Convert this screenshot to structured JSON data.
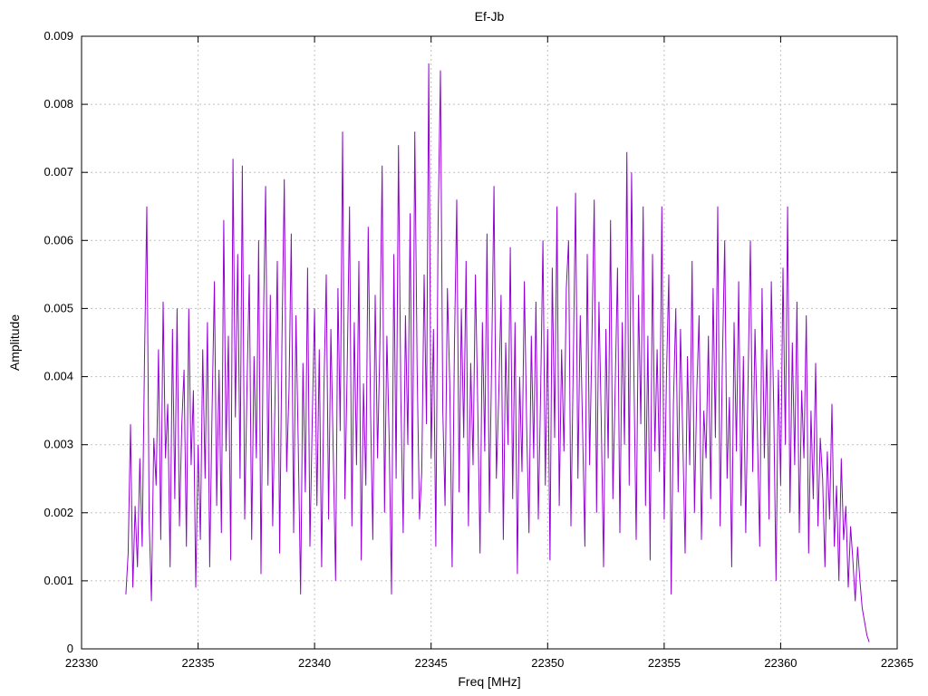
{
  "chart_data": {
    "type": "line",
    "title": "Ef-Jb",
    "xlabel": "Freq [MHz]",
    "ylabel": "Amplitude",
    "xlim": [
      22330,
      22365
    ],
    "ylim": [
      0,
      0.009
    ],
    "grid": true,
    "legend": "none",
    "line_color": "#9400d3",
    "grid_color": "#c0c0c0",
    "background_color": "#ffffff",
    "x_ticks": [
      22330,
      22335,
      22340,
      22345,
      22350,
      22355,
      22360,
      22365
    ],
    "x_tick_labels": [
      "22330",
      "22335",
      "22340",
      "22345",
      "22350",
      "22355",
      "22360",
      "22365"
    ],
    "y_ticks": [
      0,
      0.001,
      0.002,
      0.003,
      0.004,
      0.005,
      0.006,
      0.007,
      0.008,
      0.009
    ],
    "y_tick_labels": [
      "0",
      "0.001",
      "0.002",
      "0.003",
      "0.004",
      "0.005",
      "0.006",
      "0.007",
      "0.008",
      "0.009"
    ],
    "series": [
      {
        "name": "Ef-Jb",
        "x_start": 22331.9,
        "x_step": 0.1,
        "values": [
          0.0008,
          0.0014,
          0.0033,
          0.0009,
          0.0021,
          0.0012,
          0.0028,
          0.0015,
          0.0042,
          0.0065,
          0.0019,
          0.0007,
          0.0031,
          0.0024,
          0.0044,
          0.0016,
          0.0051,
          0.0028,
          0.0036,
          0.0012,
          0.0047,
          0.0022,
          0.005,
          0.0018,
          0.0033,
          0.0041,
          0.0015,
          0.005,
          0.0027,
          0.0038,
          0.0009,
          0.003,
          0.0016,
          0.0044,
          0.0025,
          0.0048,
          0.0012,
          0.0035,
          0.0054,
          0.0021,
          0.0041,
          0.0017,
          0.0063,
          0.0029,
          0.0046,
          0.0013,
          0.0072,
          0.0034,
          0.0058,
          0.0025,
          0.0071,
          0.0019,
          0.0039,
          0.0055,
          0.0016,
          0.0043,
          0.0028,
          0.006,
          0.0011,
          0.0047,
          0.0068,
          0.0024,
          0.0052,
          0.0018,
          0.0036,
          0.0057,
          0.0014,
          0.0045,
          0.0069,
          0.0026,
          0.0038,
          0.0061,
          0.0017,
          0.0049,
          0.003,
          0.0008,
          0.0042,
          0.0023,
          0.0056,
          0.0015,
          0.0034,
          0.005,
          0.0021,
          0.0044,
          0.0012,
          0.0038,
          0.0055,
          0.0019,
          0.0047,
          0.0029,
          0.001,
          0.0053,
          0.0032,
          0.0076,
          0.0022,
          0.0041,
          0.0065,
          0.0018,
          0.0048,
          0.0027,
          0.0057,
          0.0013,
          0.0039,
          0.0024,
          0.0062,
          0.0035,
          0.0016,
          0.0052,
          0.0028,
          0.0044,
          0.0071,
          0.002,
          0.0046,
          0.0031,
          0.0008,
          0.0058,
          0.0025,
          0.0074,
          0.0037,
          0.0017,
          0.0049,
          0.003,
          0.0064,
          0.0022,
          0.0076,
          0.0041,
          0.0019,
          0.0026,
          0.0055,
          0.0033,
          0.0086,
          0.0028,
          0.0047,
          0.0015,
          0.0062,
          0.0085,
          0.0035,
          0.0021,
          0.0053,
          0.0039,
          0.0012,
          0.0044,
          0.0066,
          0.0023,
          0.005,
          0.0031,
          0.0057,
          0.0018,
          0.0042,
          0.0027,
          0.0055,
          0.0036,
          0.0014,
          0.0048,
          0.0029,
          0.0061,
          0.002,
          0.0043,
          0.0068,
          0.0025,
          0.0037,
          0.0052,
          0.0016,
          0.0045,
          0.003,
          0.0059,
          0.0022,
          0.0048,
          0.0011,
          0.004,
          0.0026,
          0.0054,
          0.0033,
          0.0017,
          0.0046,
          0.0028,
          0.0051,
          0.0019,
          0.0038,
          0.006,
          0.0024,
          0.0047,
          0.0013,
          0.0056,
          0.0031,
          0.0065,
          0.0021,
          0.0044,
          0.0029,
          0.0053,
          0.006,
          0.0018,
          0.0042,
          0.0067,
          0.0025,
          0.0049,
          0.0032,
          0.0015,
          0.0058,
          0.0027,
          0.0045,
          0.0066,
          0.002,
          0.0051,
          0.0034,
          0.0012,
          0.0047,
          0.0028,
          0.0063,
          0.0022,
          0.0039,
          0.0056,
          0.0017,
          0.0048,
          0.003,
          0.0073,
          0.0024,
          0.007,
          0.0041,
          0.0016,
          0.0052,
          0.0033,
          0.0065,
          0.0021,
          0.0046,
          0.0013,
          0.0058,
          0.0029,
          0.0044,
          0.0026,
          0.0065,
          0.0019,
          0.004,
          0.0055,
          0.0008,
          0.0036,
          0.005,
          0.0023,
          0.0047,
          0.0031,
          0.0014,
          0.0043,
          0.0027,
          0.0057,
          0.002,
          0.0038,
          0.0049,
          0.0016,
          0.0035,
          0.0028,
          0.0046,
          0.0022,
          0.0053,
          0.0031,
          0.0065,
          0.0018,
          0.0042,
          0.006,
          0.0025,
          0.0037,
          0.0012,
          0.0048,
          0.0029,
          0.0054,
          0.0021,
          0.0043,
          0.0017,
          0.0039,
          0.006,
          0.0026,
          0.0047,
          0.0032,
          0.0015,
          0.0053,
          0.0028,
          0.0044,
          0.0019,
          0.0054,
          0.0036,
          0.001,
          0.0041,
          0.0024,
          0.0056,
          0.003,
          0.0065,
          0.002,
          0.0045,
          0.0027,
          0.0051,
          0.0017,
          0.0038,
          0.0028,
          0.0049,
          0.0014,
          0.0035,
          0.0022,
          0.0042,
          0.0018,
          0.0031,
          0.0025,
          0.0012,
          0.0029,
          0.0019,
          0.0036,
          0.0015,
          0.0024,
          0.001,
          0.0028,
          0.0016,
          0.0021,
          0.0009,
          0.0018,
          0.0013,
          0.0007,
          0.0015,
          0.001,
          0.0006,
          0.0004,
          0.0002,
          0.0001
        ]
      }
    ]
  }
}
